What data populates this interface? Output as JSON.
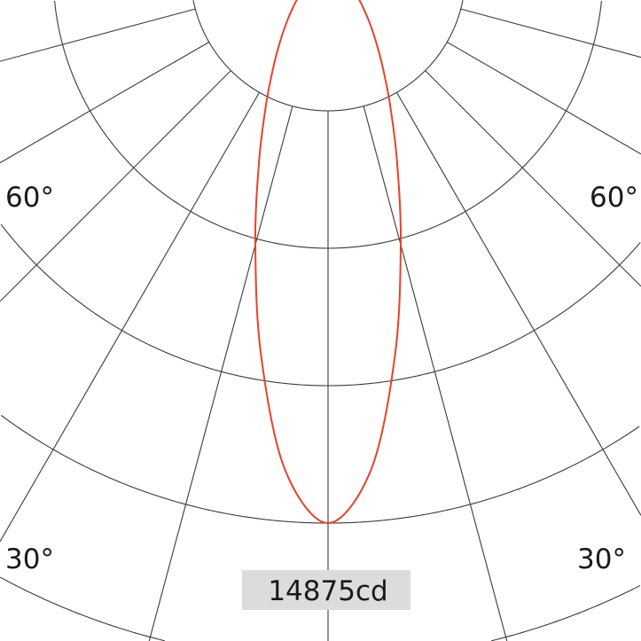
{
  "chart_data": {
    "type": "polar",
    "title": "",
    "unit": "cd",
    "max_label": "14875cd",
    "rmax": 14875,
    "ring_step": 3718.75,
    "rings": 5,
    "spoke_step_deg": 15,
    "angle_labels": [
      {
        "text": "60°",
        "side": "left",
        "angle": 60
      },
      {
        "text": "60°",
        "side": "right",
        "angle": 60
      },
      {
        "text": "30°",
        "side": "left",
        "angle": 30
      },
      {
        "text": "30°",
        "side": "right",
        "angle": 30
      }
    ],
    "symmetric": true,
    "series": [
      {
        "color": "#e8412a",
        "angles": [
          0,
          5,
          10,
          15,
          20,
          25,
          30,
          35,
          40,
          45,
          50,
          60,
          70,
          80,
          90
        ],
        "values": [
          14875,
          13459,
          10460,
          7601,
          5470,
          3995,
          2980,
          2268,
          1755,
          1376,
          1087,
          678,
          399,
          186,
          0
        ]
      }
    ],
    "grid": true,
    "colors": {
      "grid": "#3a3a3a",
      "label_box": "#dcdcdc"
    }
  }
}
